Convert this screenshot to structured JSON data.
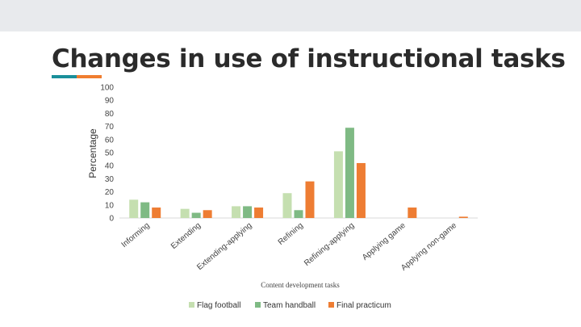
{
  "slide": {
    "title": "Changes in use of instructional tasks",
    "accent_colors": [
      "#1a8f9a",
      "#f07d2f"
    ]
  },
  "chart_data": {
    "type": "bar",
    "title": "",
    "xlabel": "Content development tasks",
    "ylabel": "Percentage",
    "ylim": [
      0,
      100
    ],
    "yticks": [
      0,
      10,
      20,
      30,
      40,
      50,
      60,
      70,
      80,
      90,
      100
    ],
    "grid": false,
    "legend_position": "bottom",
    "categories": [
      "Informing",
      "Extending",
      "Extending-applying",
      "Refining",
      "Refining-applying",
      "Applying game",
      "Applying non-game"
    ],
    "series": [
      {
        "name": "Flag football",
        "color": "#c5dfb0",
        "values": [
          14,
          7,
          9,
          19,
          51,
          0,
          0
        ]
      },
      {
        "name": "Team handball",
        "color": "#7fba84",
        "values": [
          12,
          4,
          9,
          6,
          69,
          0,
          0
        ]
      },
      {
        "name": "Final practicum",
        "color": "#ee7d33",
        "values": [
          8,
          6,
          8,
          28,
          42,
          8,
          1
        ]
      }
    ]
  }
}
